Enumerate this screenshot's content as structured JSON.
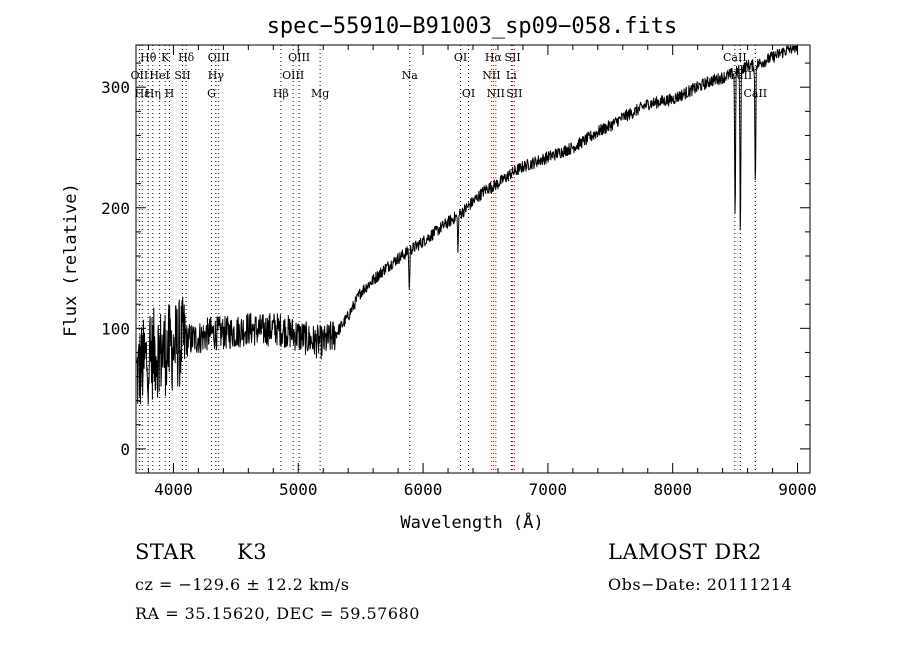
{
  "chart_data": {
    "type": "line",
    "title": "spec−55910−B91003_sp09−058.fits",
    "xlabel": "Wavelength (Å)",
    "ylabel": "Flux (relative)",
    "xlim": [
      3700,
      9100
    ],
    "ylim": [
      -20,
      335
    ],
    "xticks": [
      4000,
      5000,
      6000,
      7000,
      8000,
      9000
    ],
    "yticks": [
      0,
      100,
      200,
      300
    ],
    "grid": false,
    "series": [
      {
        "values_x": [
          3700,
          3750,
          3800,
          3850,
          3900,
          3950,
          4000,
          4100,
          4200,
          4300,
          4400,
          4500,
          4600,
          4700,
          4800,
          4900,
          5000,
          5100,
          5200,
          5300,
          5400,
          5500,
          5600,
          5700,
          5800,
          5900,
          6000,
          6100,
          6200,
          6300,
          6400,
          6500,
          6600,
          6700,
          6800,
          6900,
          7000,
          7100,
          7200,
          7300,
          7400,
          7500,
          7600,
          7700,
          7800,
          7900,
          8000,
          8100,
          8200,
          8300,
          8400,
          8500,
          8550,
          8600,
          8650,
          8700,
          8800,
          8900,
          8950,
          9000
        ],
        "values_y": [
          60,
          70,
          75,
          80,
          80,
          82,
          85,
          90,
          92,
          96,
          96,
          97,
          100,
          98,
          100,
          98,
          94,
          90,
          88,
          95,
          110,
          130,
          140,
          150,
          158,
          165,
          172,
          180,
          188,
          195,
          205,
          215,
          220,
          228,
          234,
          238,
          242,
          246,
          250,
          256,
          263,
          268,
          275,
          280,
          286,
          288,
          290,
          295,
          300,
          305,
          308,
          312,
          315,
          318,
          318,
          320,
          325,
          330,
          332,
          335
        ]
      }
    ],
    "line_labels": [
      {
        "label": "Hθ",
        "wavelength": 3798,
        "row": 0,
        "color": "#000000"
      },
      {
        "label": "K",
        "wavelength": 3934,
        "row": 0,
        "color": "#000000"
      },
      {
        "label": "Hδ",
        "wavelength": 4102,
        "row": 0,
        "color": "#000000"
      },
      {
        "label": "OIII",
        "wavelength": 4363,
        "row": 0,
        "color": "#000000"
      },
      {
        "label": "OIII",
        "wavelength": 5007,
        "row": 0,
        "color": "#000000"
      },
      {
        "label": "OI",
        "wavelength": 6300,
        "row": 0,
        "color": "#000000"
      },
      {
        "label": "Hα",
        "wavelength": 6563,
        "row": 0,
        "color": "#cc0000"
      },
      {
        "label": "SII",
        "wavelength": 6717,
        "row": 0,
        "color": "#cc0000"
      },
      {
        "label": "CaII",
        "wavelength": 8498,
        "row": 0,
        "color": "#000000"
      },
      {
        "label": "OII",
        "wavelength": 3727,
        "row": 1,
        "color": "#000000"
      },
      {
        "label": "HeI",
        "wavelength": 3889,
        "row": 1,
        "color": "#000000"
      },
      {
        "label": "SII",
        "wavelength": 4072,
        "row": 1,
        "color": "#000000"
      },
      {
        "label": "Hγ",
        "wavelength": 4340,
        "row": 1,
        "color": "#000000"
      },
      {
        "label": "OIII",
        "wavelength": 4959,
        "row": 1,
        "color": "#000000"
      },
      {
        "label": "Na",
        "wavelength": 5893,
        "row": 1,
        "color": "#000000"
      },
      {
        "label": "NII",
        "wavelength": 6548,
        "row": 1,
        "color": "#cc0000"
      },
      {
        "label": "Li",
        "wavelength": 6707,
        "row": 1,
        "color": "#000000"
      },
      {
        "label": "CaII",
        "wavelength": 8542,
        "row": 1,
        "color": "#000000"
      },
      {
        "label": "Hε",
        "wavelength": 3750,
        "row": 2,
        "color": "#000000"
      },
      {
        "label": "Hη",
        "wavelength": 3835,
        "row": 2,
        "color": "#000000"
      },
      {
        "label": "H",
        "wavelength": 3968,
        "row": 2,
        "color": "#000000"
      },
      {
        "label": "G",
        "wavelength": 4305,
        "row": 2,
        "color": "#000000"
      },
      {
        "label": "Hβ",
        "wavelength": 4861,
        "row": 2,
        "color": "#000000"
      },
      {
        "label": "Mg",
        "wavelength": 5175,
        "row": 2,
        "color": "#000000"
      },
      {
        "label": "OI",
        "wavelength": 6364,
        "row": 2,
        "color": "#000000"
      },
      {
        "label": "NII",
        "wavelength": 6583,
        "row": 2,
        "color": "#cc0000"
      },
      {
        "label": "SII",
        "wavelength": 6731,
        "row": 2,
        "color": "#cc0000"
      },
      {
        "label": "CaII",
        "wavelength": 8662,
        "row": 2,
        "color": "#000000"
      }
    ],
    "absorption_dips": [
      {
        "wavelength": 8500,
        "depth": 130
      },
      {
        "wavelength": 8542,
        "depth": 150
      },
      {
        "wavelength": 8662,
        "depth": 110
      },
      {
        "wavelength": 6280,
        "depth": 30
      },
      {
        "wavelength": 5890,
        "depth": 35
      }
    ]
  },
  "info": {
    "object_class": "STAR",
    "subclass": "K3",
    "survey": "LAMOST DR2",
    "cz": "cz = −129.6 ± 12.2 km/s",
    "obs_date": "Obs−Date: 20111214",
    "coords": "RA =  35.15620, DEC =  59.57680"
  },
  "colors": {
    "line": "#000000",
    "text": "#000000",
    "marker_dark": "#000000",
    "marker_red": "#cc0000"
  }
}
